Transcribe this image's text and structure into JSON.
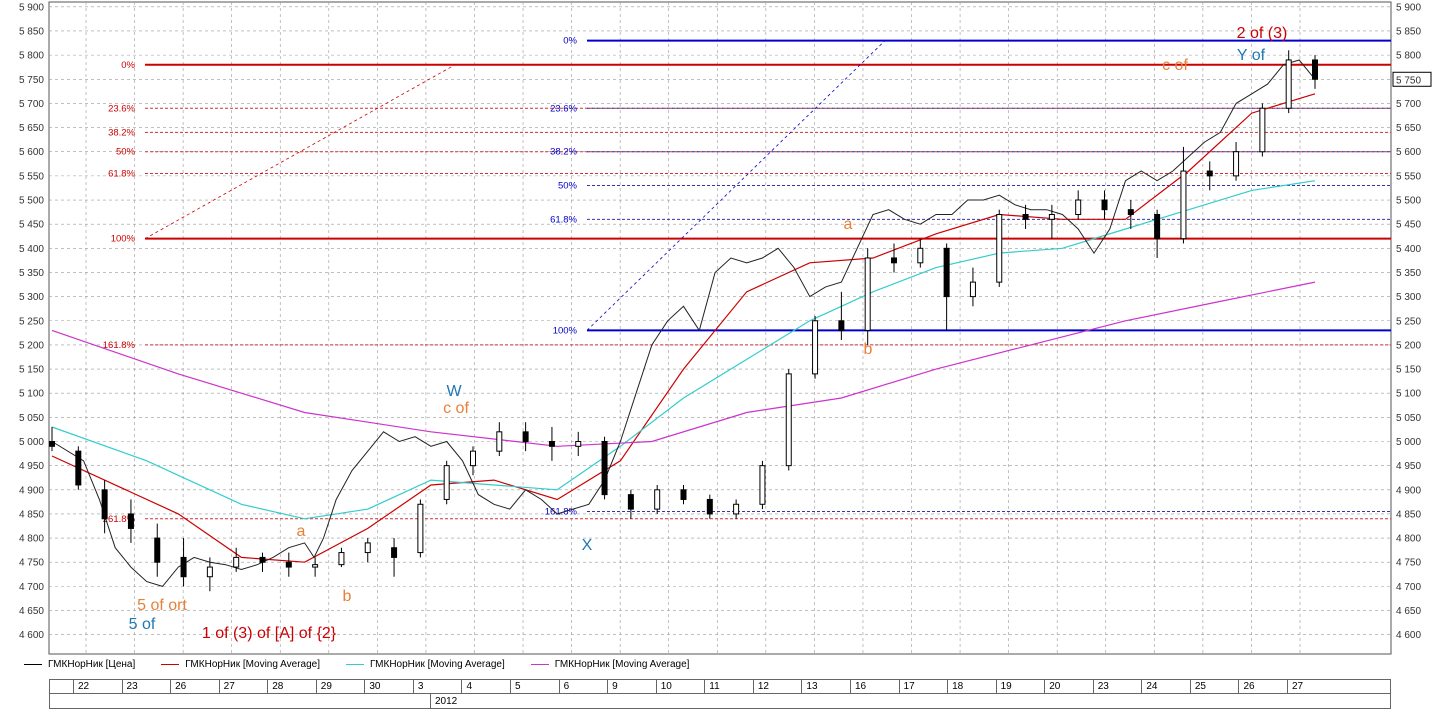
{
  "chart_data": {
    "type": "candlestick",
    "title": "",
    "ylim": [
      4560,
      5910
    ],
    "y_ticks": [
      4600,
      4650,
      4700,
      4750,
      4800,
      4850,
      4900,
      4950,
      5000,
      5050,
      5100,
      5150,
      5200,
      5250,
      5300,
      5350,
      5400,
      5450,
      5500,
      5550,
      5600,
      5650,
      5700,
      5750,
      5800,
      5850,
      5900
    ],
    "y_tick_labels": [
      "4 600",
      "4 650",
      "4 700",
      "4 750",
      "4 800",
      "4 850",
      "4 900",
      "4 950",
      "5 000",
      "5 050",
      "5 100",
      "5 150",
      "5 200",
      "5 250",
      "5 300",
      "5 350",
      "5 400",
      "5 450",
      "5 500",
      "5 550",
      "5 600",
      "5 650",
      "5 700",
      "5 750",
      "5 800",
      "5 850",
      "5 900"
    ],
    "last_price_label": "5 750",
    "last_price": 5750,
    "grid": true,
    "x_days": [
      "22",
      "23",
      "26",
      "27",
      "28",
      "29",
      "30",
      "3",
      "4",
      "5",
      "6",
      "9",
      "10",
      "11",
      "12",
      "13",
      "16",
      "17",
      "18",
      "19",
      "20",
      "23",
      "24",
      "25",
      "26",
      "27"
    ],
    "year_label": "2012",
    "price_path": [
      [
        0,
        5000
      ],
      [
        1,
        4960
      ],
      [
        1.5,
        4880
      ],
      [
        2,
        4780
      ],
      [
        2.5,
        4740
      ],
      [
        3,
        4710
      ],
      [
        3.5,
        4700
      ],
      [
        4,
        4740
      ],
      [
        4.5,
        4760
      ],
      [
        5,
        4750
      ],
      [
        5.5,
        4745
      ],
      [
        6,
        4735
      ],
      [
        6.5,
        4745
      ],
      [
        7,
        4760
      ],
      [
        7.5,
        4780
      ],
      [
        8,
        4790
      ],
      [
        8.3,
        4760
      ],
      [
        8.6,
        4800
      ],
      [
        9,
        4880
      ],
      [
        9.5,
        4940
      ],
      [
        10,
        4980
      ],
      [
        10.5,
        5020
      ],
      [
        11,
        5000
      ],
      [
        11.5,
        5010
      ],
      [
        12,
        4990
      ],
      [
        12.5,
        5000
      ],
      [
        13,
        4960
      ],
      [
        13.5,
        4890
      ],
      [
        14,
        4870
      ],
      [
        14.5,
        4860
      ],
      [
        15,
        4900
      ],
      [
        15.5,
        4880
      ],
      [
        16,
        4850
      ],
      [
        16.5,
        4860
      ],
      [
        17,
        4870
      ],
      [
        17.5,
        4920
      ],
      [
        18,
        5000
      ],
      [
        18.5,
        5100
      ],
      [
        19,
        5200
      ],
      [
        19.5,
        5250
      ],
      [
        20,
        5280
      ],
      [
        20.5,
        5230
      ],
      [
        21,
        5350
      ],
      [
        21.5,
        5380
      ],
      [
        22,
        5370
      ],
      [
        22.5,
        5380
      ],
      [
        23,
        5400
      ],
      [
        23.5,
        5360
      ],
      [
        24,
        5300
      ],
      [
        24.5,
        5320
      ],
      [
        25,
        5330
      ],
      [
        25.5,
        5400
      ],
      [
        26,
        5470
      ],
      [
        26.5,
        5480
      ],
      [
        27,
        5460
      ],
      [
        27.5,
        5450
      ],
      [
        28,
        5470
      ],
      [
        28.5,
        5470
      ],
      [
        29,
        5500
      ],
      [
        29.5,
        5500
      ],
      [
        30,
        5510
      ],
      [
        30.5,
        5490
      ],
      [
        31,
        5480
      ],
      [
        31.5,
        5480
      ],
      [
        32,
        5470
      ],
      [
        32.5,
        5440
      ],
      [
        33,
        5390
      ],
      [
        33.5,
        5440
      ],
      [
        34,
        5540
      ],
      [
        34.5,
        5560
      ],
      [
        35,
        5540
      ],
      [
        35.5,
        5560
      ],
      [
        36,
        5590
      ],
      [
        36.5,
        5620
      ],
      [
        37,
        5640
      ],
      [
        37.5,
        5700
      ],
      [
        38,
        5720
      ],
      [
        38.5,
        5740
      ],
      [
        39,
        5780
      ],
      [
        39.5,
        5790
      ],
      [
        40,
        5750
      ]
    ],
    "candles": [
      {
        "name": "c1",
        "o": 5000,
        "h": 5030,
        "l": 4980,
        "c": 4990
      },
      {
        "name": "c2",
        "o": 4980,
        "h": 4990,
        "l": 4900,
        "c": 4910
      },
      {
        "name": "c3",
        "o": 4900,
        "h": 4920,
        "l": 4810,
        "c": 4840
      },
      {
        "name": "c4",
        "o": 4850,
        "h": 4880,
        "l": 4790,
        "c": 4820
      },
      {
        "name": "c5",
        "o": 4800,
        "h": 4830,
        "l": 4720,
        "c": 4750
      },
      {
        "name": "c6",
        "o": 4760,
        "h": 4800,
        "l": 4700,
        "c": 4720
      },
      {
        "name": "c7",
        "o": 4720,
        "h": 4760,
        "l": 4690,
        "c": 4740
      },
      {
        "name": "c8",
        "o": 4740,
        "h": 4780,
        "l": 4730,
        "c": 4760
      },
      {
        "name": "c9",
        "o": 4760,
        "h": 4770,
        "l": 4730,
        "c": 4750
      },
      {
        "name": "c10",
        "o": 4750,
        "h": 4770,
        "l": 4720,
        "c": 4740
      },
      {
        "name": "c11",
        "o": 4740,
        "h": 4760,
        "l": 4720,
        "c": 4745
      },
      {
        "name": "c12",
        "o": 4745,
        "h": 4780,
        "l": 4740,
        "c": 4770
      },
      {
        "name": "c13",
        "o": 4770,
        "h": 4800,
        "l": 4750,
        "c": 4790
      },
      {
        "name": "c14",
        "o": 4780,
        "h": 4800,
        "l": 4720,
        "c": 4760
      },
      {
        "name": "c15",
        "o": 4770,
        "h": 4880,
        "l": 4760,
        "c": 4870
      },
      {
        "name": "c16",
        "o": 4880,
        "h": 4960,
        "l": 4870,
        "c": 4950
      },
      {
        "name": "c17",
        "o": 4950,
        "h": 4990,
        "l": 4930,
        "c": 4980
      },
      {
        "name": "c18",
        "o": 4980,
        "h": 5040,
        "l": 4970,
        "c": 5020
      },
      {
        "name": "c19",
        "o": 5020,
        "h": 5040,
        "l": 4980,
        "c": 5000
      },
      {
        "name": "c20",
        "o": 5000,
        "h": 5030,
        "l": 4960,
        "c": 4990
      },
      {
        "name": "c21",
        "o": 4990,
        "h": 5020,
        "l": 4970,
        "c": 5000
      },
      {
        "name": "c22",
        "o": 5000,
        "h": 5010,
        "l": 4880,
        "c": 4890
      },
      {
        "name": "c23",
        "o": 4890,
        "h": 4900,
        "l": 4840,
        "c": 4860
      },
      {
        "name": "c24",
        "o": 4860,
        "h": 4910,
        "l": 4850,
        "c": 4900
      },
      {
        "name": "c25",
        "o": 4900,
        "h": 4910,
        "l": 4870,
        "c": 4880
      },
      {
        "name": "c26",
        "o": 4880,
        "h": 4890,
        "l": 4840,
        "c": 4850
      },
      {
        "name": "c27",
        "o": 4850,
        "h": 4880,
        "l": 4840,
        "c": 4870
      },
      {
        "name": "c28",
        "o": 4870,
        "h": 4960,
        "l": 4860,
        "c": 4950
      },
      {
        "name": "c29",
        "o": 4950,
        "h": 5150,
        "l": 4940,
        "c": 5140
      },
      {
        "name": "c30",
        "o": 5140,
        "h": 5260,
        "l": 5130,
        "c": 5250
      },
      {
        "name": "c31",
        "o": 5250,
        "h": 5310,
        "l": 5210,
        "c": 5230
      },
      {
        "name": "c32",
        "o": 5230,
        "h": 5400,
        "l": 5200,
        "c": 5380
      },
      {
        "name": "c33",
        "o": 5380,
        "h": 5410,
        "l": 5350,
        "c": 5370
      },
      {
        "name": "c34",
        "o": 5370,
        "h": 5420,
        "l": 5360,
        "c": 5400
      },
      {
        "name": "c35",
        "o": 5400,
        "h": 5410,
        "l": 5230,
        "c": 5300
      },
      {
        "name": "c36",
        "o": 5300,
        "h": 5360,
        "l": 5280,
        "c": 5330
      },
      {
        "name": "c37",
        "o": 5330,
        "h": 5480,
        "l": 5320,
        "c": 5470
      },
      {
        "name": "c38",
        "o": 5470,
        "h": 5490,
        "l": 5440,
        "c": 5460
      },
      {
        "name": "c39",
        "o": 5460,
        "h": 5490,
        "l": 5420,
        "c": 5470
      },
      {
        "name": "c40",
        "o": 5470,
        "h": 5520,
        "l": 5460,
        "c": 5500
      },
      {
        "name": "c41",
        "o": 5500,
        "h": 5520,
        "l": 5460,
        "c": 5480
      },
      {
        "name": "c42",
        "o": 5480,
        "h": 5500,
        "l": 5440,
        "c": 5470
      },
      {
        "name": "c43",
        "o": 5470,
        "h": 5480,
        "l": 5380,
        "c": 5420
      },
      {
        "name": "c44",
        "o": 5420,
        "h": 5610,
        "l": 5410,
        "c": 5560
      },
      {
        "name": "c45",
        "o": 5560,
        "h": 5580,
        "l": 5520,
        "c": 5550
      },
      {
        "name": "c46",
        "o": 5550,
        "h": 5620,
        "l": 5540,
        "c": 5600
      },
      {
        "name": "c47",
        "o": 5600,
        "h": 5700,
        "l": 5590,
        "c": 5690
      },
      {
        "name": "c48",
        "o": 5690,
        "h": 5810,
        "l": 5680,
        "c": 5790
      },
      {
        "name": "c49",
        "o": 5790,
        "h": 5800,
        "l": 5730,
        "c": 5750
      }
    ],
    "ma_series": [
      {
        "color": "#cc0000",
        "points": [
          [
            0,
            4970
          ],
          [
            4,
            4850
          ],
          [
            6,
            4760
          ],
          [
            8,
            4750
          ],
          [
            10,
            4820
          ],
          [
            12,
            4910
          ],
          [
            14,
            4920
          ],
          [
            16,
            4880
          ],
          [
            18,
            4960
          ],
          [
            20,
            5150
          ],
          [
            22,
            5310
          ],
          [
            24,
            5370
          ],
          [
            26,
            5380
          ],
          [
            28,
            5430
          ],
          [
            30,
            5470
          ],
          [
            32,
            5460
          ],
          [
            34,
            5460
          ],
          [
            36,
            5560
          ],
          [
            38,
            5680
          ],
          [
            40,
            5720
          ]
        ]
      },
      {
        "color": "#33cccc",
        "points": [
          [
            0,
            5030
          ],
          [
            3,
            4960
          ],
          [
            6,
            4870
          ],
          [
            8,
            4840
          ],
          [
            10,
            4860
          ],
          [
            12,
            4920
          ],
          [
            14,
            4910
          ],
          [
            16,
            4900
          ],
          [
            18,
            4990
          ],
          [
            20,
            5090
          ],
          [
            22,
            5170
          ],
          [
            24,
            5250
          ],
          [
            26,
            5310
          ],
          [
            28,
            5360
          ],
          [
            30,
            5390
          ],
          [
            32,
            5400
          ],
          [
            34,
            5440
          ],
          [
            36,
            5480
          ],
          [
            38,
            5520
          ],
          [
            40,
            5540
          ]
        ]
      },
      {
        "color": "#cc33cc",
        "points": [
          [
            0,
            5230
          ],
          [
            4,
            5140
          ],
          [
            8,
            5060
          ],
          [
            12,
            5020
          ],
          [
            16,
            4990
          ],
          [
            19,
            5000
          ],
          [
            22,
            5060
          ],
          [
            25,
            5090
          ],
          [
            28,
            5150
          ],
          [
            31,
            5200
          ],
          [
            34,
            5250
          ],
          [
            37,
            5290
          ],
          [
            40,
            5330
          ]
        ]
      }
    ],
    "fib_sets": [
      {
        "color": "#cc0000",
        "dashed_color": "#cc3333",
        "levels": [
          {
            "label": "0%",
            "value": 5780,
            "solid": true
          },
          {
            "label": "23.6%",
            "value": 5690,
            "solid": false
          },
          {
            "label": "38.2%",
            "value": 5640,
            "solid": false
          },
          {
            "label": "50%",
            "value": 5600,
            "solid": false
          },
          {
            "label": "61.8%",
            "value": 5555,
            "solid": false
          },
          {
            "label": "100%",
            "value": 5420,
            "solid": true
          },
          {
            "label": "161.8%",
            "value": 5200,
            "solid": false
          },
          {
            "label": "261.8%",
            "value": 4840,
            "solid": false
          }
        ]
      },
      {
        "color": "#0000cc",
        "dashed_color": "#3333aa",
        "levels": [
          {
            "label": "0%",
            "value": 5830,
            "solid": true
          },
          {
            "label": "23.6%",
            "value": 5690,
            "solid": false
          },
          {
            "label": "38.2%",
            "value": 5600,
            "solid": false
          },
          {
            "label": "50%",
            "value": 5530,
            "solid": false
          },
          {
            "label": "61.8%",
            "value": 5460,
            "solid": false
          },
          {
            "label": "100%",
            "value": 5230,
            "solid": true
          },
          {
            "label": "161.8%",
            "value": 4855,
            "solid": false
          }
        ]
      }
    ],
    "annotations": [
      {
        "text": "2 of (3)",
        "color": "#cc0000"
      },
      {
        "text": "Y of",
        "color": "#1f77b4"
      },
      {
        "text": "c of",
        "color": "#e8803a"
      },
      {
        "text": "W",
        "color": "#1f77b4"
      },
      {
        "text": "c of",
        "color": "#e8803a"
      },
      {
        "text": "a",
        "color": "#e8803a"
      },
      {
        "text": "b",
        "color": "#e8803a"
      },
      {
        "text": "a",
        "color": "#e8803a"
      },
      {
        "text": "b",
        "color": "#e8803a"
      },
      {
        "text": "X",
        "color": "#1f77b4"
      },
      {
        "text": "5 of ort",
        "color": "#e8803a"
      },
      {
        "text": "5 of",
        "color": "#1f77b4"
      },
      {
        "text": "1 of (3) of [A] of {2}",
        "color": "#cc0000"
      }
    ],
    "legend": [
      {
        "label": "ГМКНорНик [Цена]",
        "color": "#000000"
      },
      {
        "label": "ГМКНорНик [Moving Average]",
        "color": "#cc0000"
      },
      {
        "label": "ГМКНорНик [Moving Average]",
        "color": "#33cccc"
      },
      {
        "label": "ГМКНорНик [Moving Average]",
        "color": "#cc33cc"
      }
    ]
  }
}
